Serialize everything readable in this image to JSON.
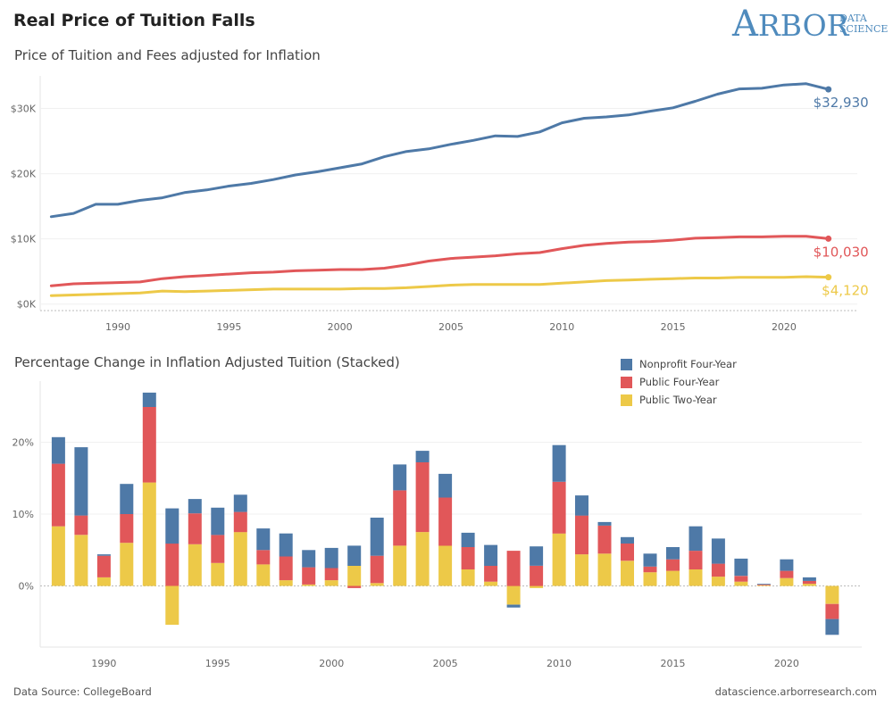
{
  "header": {
    "title": "Real Price of Tuition Falls",
    "logo_main": "ARBOR",
    "logo_line1": "DATA",
    "logo_line2": "SCIENCE"
  },
  "footer": {
    "source": "Data Source: CollegeBoard",
    "site": "datascience.arborresearch.com"
  },
  "colors": {
    "nonprofit": "#4e79a7",
    "public4": "#e15759",
    "public2": "#edc948"
  },
  "chart_data": [
    {
      "type": "line",
      "title": "Price of Tuition and Fees adjusted for Inflation",
      "x": [
        1987,
        1988,
        1989,
        1990,
        1991,
        1992,
        1993,
        1994,
        1995,
        1996,
        1997,
        1998,
        1999,
        2000,
        2001,
        2002,
        2003,
        2004,
        2005,
        2006,
        2007,
        2008,
        2009,
        2010,
        2011,
        2012,
        2013,
        2014,
        2015,
        2016,
        2017,
        2018,
        2019,
        2020,
        2021,
        2022
      ],
      "ylim": [
        0,
        35000
      ],
      "yticks": [
        0,
        10000,
        20000,
        30000
      ],
      "ytick_labels": [
        "$0K",
        "$10K",
        "$20K",
        "$30K"
      ],
      "xticks": [
        1990,
        1995,
        2000,
        2005,
        2010,
        2015,
        2020
      ],
      "series": [
        {
          "name": "Nonprofit Four-Year",
          "color": "#4e79a7",
          "end_label": "$32,930",
          "values": [
            13400,
            13900,
            15300,
            15300,
            15900,
            16300,
            17100,
            17500,
            18100,
            18500,
            19100,
            19800,
            20300,
            20900,
            21500,
            22600,
            23400,
            23800,
            24500,
            25100,
            25800,
            25700,
            26400,
            27800,
            28500,
            28700,
            29000,
            29600,
            30100,
            31100,
            32200,
            33000,
            33100,
            33600,
            33800,
            32930
          ]
        },
        {
          "name": "Public Four-Year",
          "color": "#e15759",
          "end_label": "$10,030",
          "values": [
            2800,
            3100,
            3200,
            3300,
            3400,
            3900,
            4200,
            4400,
            4600,
            4800,
            4900,
            5100,
            5200,
            5300,
            5300,
            5500,
            6000,
            6600,
            7000,
            7200,
            7400,
            7700,
            7900,
            8500,
            9000,
            9300,
            9500,
            9600,
            9800,
            10100,
            10200,
            10300,
            10300,
            10400,
            10400,
            10030
          ]
        },
        {
          "name": "Public Two-Year",
          "color": "#edc948",
          "end_label": "$4,120",
          "values": [
            1300,
            1400,
            1500,
            1600,
            1700,
            2000,
            1900,
            2000,
            2100,
            2200,
            2300,
            2300,
            2300,
            2300,
            2400,
            2400,
            2500,
            2700,
            2900,
            3000,
            3000,
            3000,
            3000,
            3200,
            3400,
            3600,
            3700,
            3800,
            3900,
            4000,
            4000,
            4100,
            4100,
            4100,
            4200,
            4120
          ]
        }
      ]
    },
    {
      "type": "bar",
      "title": "Percentage Change in Inflation Adjusted Tuition (Stacked)",
      "stacked": true,
      "x": [
        1988,
        1989,
        1990,
        1991,
        1992,
        1993,
        1994,
        1995,
        1996,
        1997,
        1998,
        1999,
        2000,
        2001,
        2002,
        2003,
        2004,
        2005,
        2006,
        2007,
        2008,
        2009,
        2010,
        2011,
        2012,
        2013,
        2014,
        2015,
        2016,
        2017,
        2018,
        2019,
        2020,
        2021,
        2022
      ],
      "ylim": [
        -8.5,
        28.5
      ],
      "yticks": [
        0,
        10,
        20
      ],
      "ytick_labels": [
        "0%",
        "10%",
        "20%"
      ],
      "xticks": [
        1990,
        1995,
        2000,
        2005,
        2010,
        2015,
        2020
      ],
      "legend": "top-right",
      "series": [
        {
          "name": "Public Two-Year",
          "color": "#edc948",
          "values": [
            8.3,
            7.1,
            1.2,
            6.0,
            14.4,
            -5.4,
            5.8,
            3.2,
            7.5,
            3.0,
            0.8,
            0.2,
            0.8,
            2.8,
            0.4,
            5.6,
            7.5,
            5.6,
            2.3,
            0.6,
            -2.6,
            -0.3,
            7.3,
            4.4,
            4.5,
            3.5,
            1.9,
            2.1,
            2.3,
            1.3,
            0.6,
            0.1,
            1.1,
            0.3,
            -2.5
          ]
        },
        {
          "name": "Public Four-Year",
          "color": "#e15759",
          "values": [
            8.7,
            2.7,
            3.0,
            4.0,
            10.5,
            5.9,
            4.3,
            3.9,
            2.8,
            2.0,
            3.3,
            2.4,
            1.7,
            -0.3,
            3.8,
            7.7,
            9.7,
            6.7,
            3.1,
            2.2,
            4.9,
            2.8,
            7.2,
            5.4,
            3.9,
            2.4,
            0.8,
            1.6,
            2.6,
            1.8,
            0.8,
            0.1,
            1.0,
            0.4,
            -2.1
          ]
        },
        {
          "name": "Nonprofit Four-Year",
          "color": "#4e79a7",
          "values": [
            3.7,
            9.5,
            0.2,
            4.2,
            2.0,
            4.9,
            2.0,
            3.8,
            2.4,
            3.0,
            3.2,
            2.4,
            2.8,
            2.8,
            5.3,
            3.6,
            1.6,
            3.3,
            2.0,
            2.9,
            -0.4,
            2.7,
            5.1,
            2.8,
            0.5,
            0.9,
            1.8,
            1.7,
            3.4,
            3.5,
            2.4,
            0.1,
            1.6,
            0.5,
            -2.2
          ]
        }
      ]
    }
  ]
}
